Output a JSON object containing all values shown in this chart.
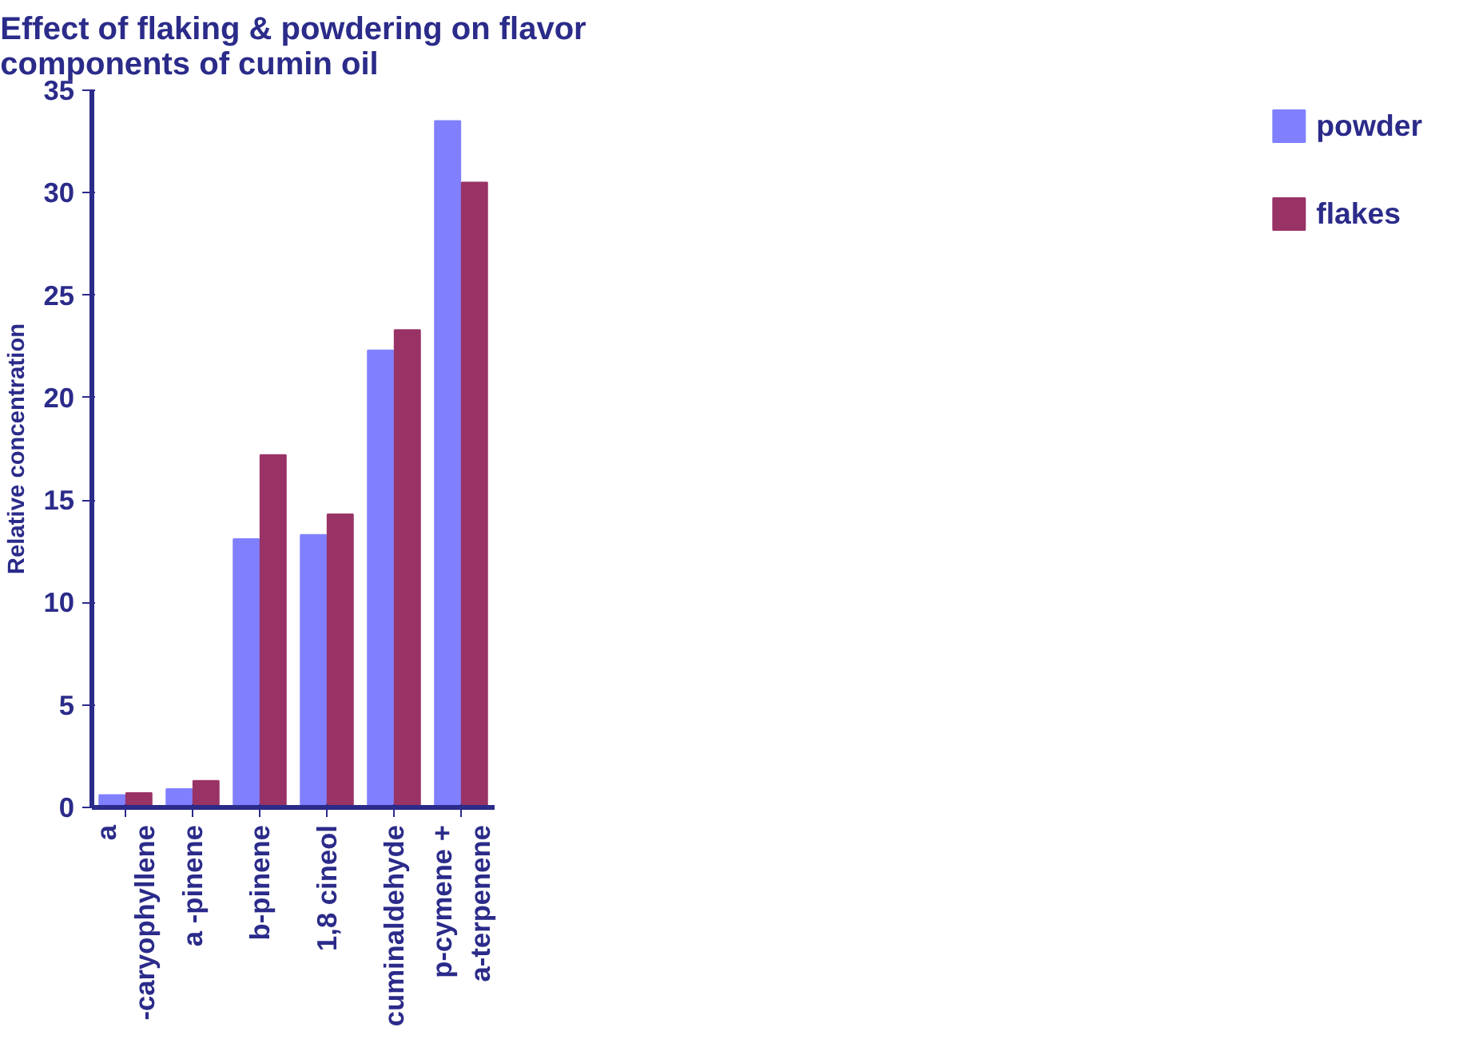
{
  "chart_data": {
    "type": "bar",
    "title": "Effect of flaking & powdering on flavor components of cumin oil",
    "ylabel": "Relative concentration",
    "categories": [
      "a -caryophyllene",
      "a -pinene",
      "b-pinene",
      "1,8 cineol",
      "cuminaldehyde",
      "p-cymene + a-terpenene"
    ],
    "series": [
      {
        "name": "powder",
        "color": "#8080ff",
        "values": [
          0.6,
          0.9,
          13.1,
          13.3,
          22.3,
          33.5
        ]
      },
      {
        "name": "flakes",
        "color": "#993366",
        "values": [
          0.7,
          1.3,
          17.2,
          14.3,
          23.3,
          30.5
        ]
      }
    ],
    "ylim": [
      0,
      35
    ],
    "yticks": [
      0,
      5,
      10,
      15,
      20,
      25,
      30,
      35
    ],
    "grid": false,
    "legend": "right"
  }
}
